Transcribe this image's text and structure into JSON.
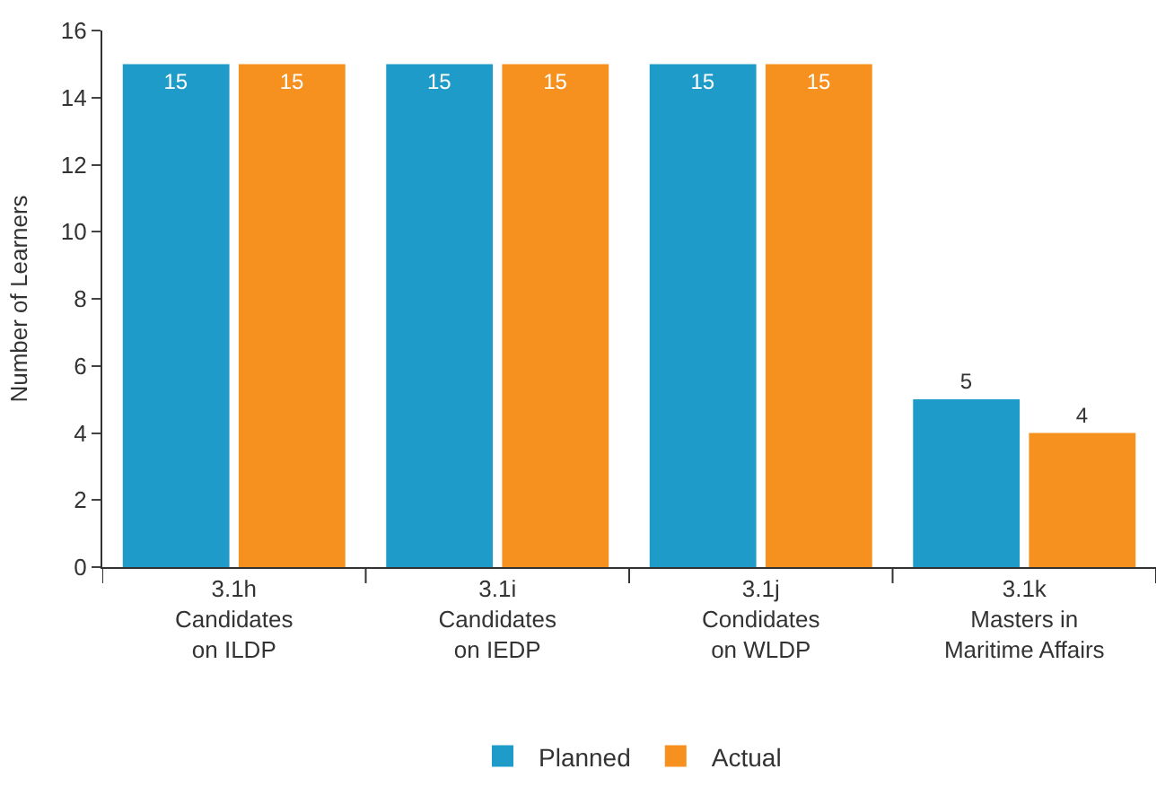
{
  "chart_data": {
    "type": "bar",
    "ylabel": "Number of Learners",
    "categories": [
      "3.1h\nCandidates\non ILDP",
      "3.1i\nCandidates\non IEDP",
      "3.1j\nCondidates\non WLDP",
      "3.1k\nMasters in\nMaritime Affairs"
    ],
    "series": [
      {
        "name": "Planned",
        "color": "#1e9bc8",
        "values": [
          15,
          15,
          15,
          5
        ]
      },
      {
        "name": "Actual",
        "color": "#f6901e",
        "values": [
          15,
          15,
          15,
          4
        ]
      }
    ],
    "ylim": [
      0,
      16
    ],
    "yticks": [
      0,
      2,
      4,
      6,
      8,
      10,
      12,
      14,
      16
    ],
    "legend": "bottom",
    "data_labels": true
  }
}
